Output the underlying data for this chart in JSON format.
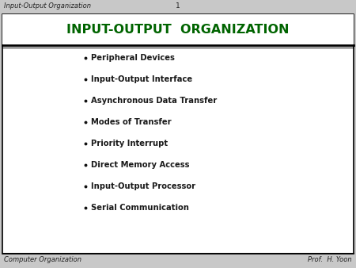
{
  "header_left": "Input-Output Organization",
  "header_center": "1",
  "title": "INPUT-OUTPUT  ORGANIZATION",
  "title_color": "#006400",
  "bullet_items": [
    "Peripheral Devices",
    "Input-Output Interface",
    "Asynchronous Data Transfer",
    "Modes of Transfer",
    "Priority Interrupt",
    "Direct Memory Access",
    "Input-Output Processor",
    "Serial Communication"
  ],
  "bullet_color": "#1a1a1a",
  "footer_left": "Computer Organization",
  "footer_right": "Prof.  H. Yoon",
  "bg_color": "#c8c8c8",
  "slide_bg": "#ffffff",
  "border_color": "#000000",
  "line_color": "#000000",
  "title_bg_color": "#ffffff",
  "header_fontsize": 6.0,
  "title_fontsize": 11.5,
  "bullet_fontsize": 7.2,
  "footer_fontsize": 6.0
}
